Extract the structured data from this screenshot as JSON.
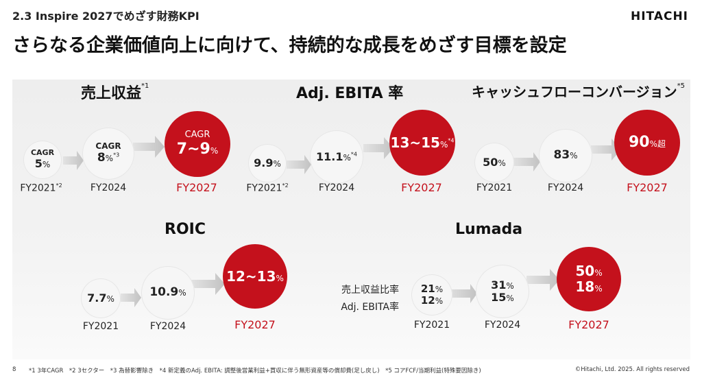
{
  "header": {
    "section_label": "2.3 Inspire 2027でめざす財務KPI",
    "logo": "HITACHI",
    "title": "さらなる企業価値向上に向けて、持続的な成長をめざす目標を設定"
  },
  "colors": {
    "accent_red": "#c4111c",
    "circle_light": "#f6f6f6",
    "arrow": "#cccccc"
  },
  "kpis": {
    "revenue": {
      "title": "売上収益",
      "title_note": "*1",
      "c1": {
        "top": "CAGR",
        "value": "5",
        "unit": "%",
        "note": "",
        "label": "FY2021",
        "label_note": "*2"
      },
      "c2": {
        "top": "CAGR",
        "value": "8",
        "unit": "%",
        "note": "*3",
        "label": "FY2024"
      },
      "c3": {
        "top": "CAGR",
        "value": "7~9",
        "unit": "%",
        "label": "FY2027"
      }
    },
    "ebita": {
      "title": "Adj. EBITA 率",
      "c1": {
        "value": "9.9",
        "unit": "%",
        "label": "FY2021",
        "label_note": "*2"
      },
      "c2": {
        "value": "11.1",
        "unit": "%",
        "note": "*4",
        "label": "FY2024"
      },
      "c3": {
        "value": "13~15",
        "unit": "%",
        "note": "*4",
        "label": "FY2027"
      }
    },
    "cashflow": {
      "title": "キャッシュフローコンバージョン",
      "title_note": "*5",
      "c1": {
        "value": "50",
        "unit": "%",
        "label": "FY2021"
      },
      "c2": {
        "value": "83",
        "unit": "%",
        "label": "FY2024"
      },
      "c3": {
        "value": "90",
        "unit": "%超",
        "label": "FY2027"
      }
    },
    "roic": {
      "title": "ROIC",
      "c1": {
        "value": "7.7",
        "unit": "%",
        "label": "FY2021"
      },
      "c2": {
        "value": "10.9",
        "unit": "%",
        "label": "FY2024"
      },
      "c3": {
        "value": "12~13",
        "unit": "%",
        "label": "FY2027"
      }
    },
    "lumada": {
      "title": "Lumada",
      "row_label_1": "売上収益比率",
      "row_label_2": "Adj. EBITA率",
      "c1": {
        "v1": "21",
        "v2": "12",
        "unit": "%",
        "label": "FY2021"
      },
      "c2": {
        "v1": "31",
        "v2": "15",
        "unit": "%",
        "label": "FY2024"
      },
      "c3": {
        "v1": "50",
        "v2": "18",
        "unit": "%",
        "label": "FY2027"
      }
    }
  },
  "footer": {
    "page": "8",
    "notes": "*1 3年CAGR　*2 3セクター　*3 為替影響除き　*4 新定義のAdj. EBITA: 調整後営業利益+買収に伴う無形資産等の償却費(足し戻し)　*5 コアFCF/当期利益(特殊要因除き)",
    "copyright": "©Hitachi, Ltd. 2025. All rights reserved"
  }
}
